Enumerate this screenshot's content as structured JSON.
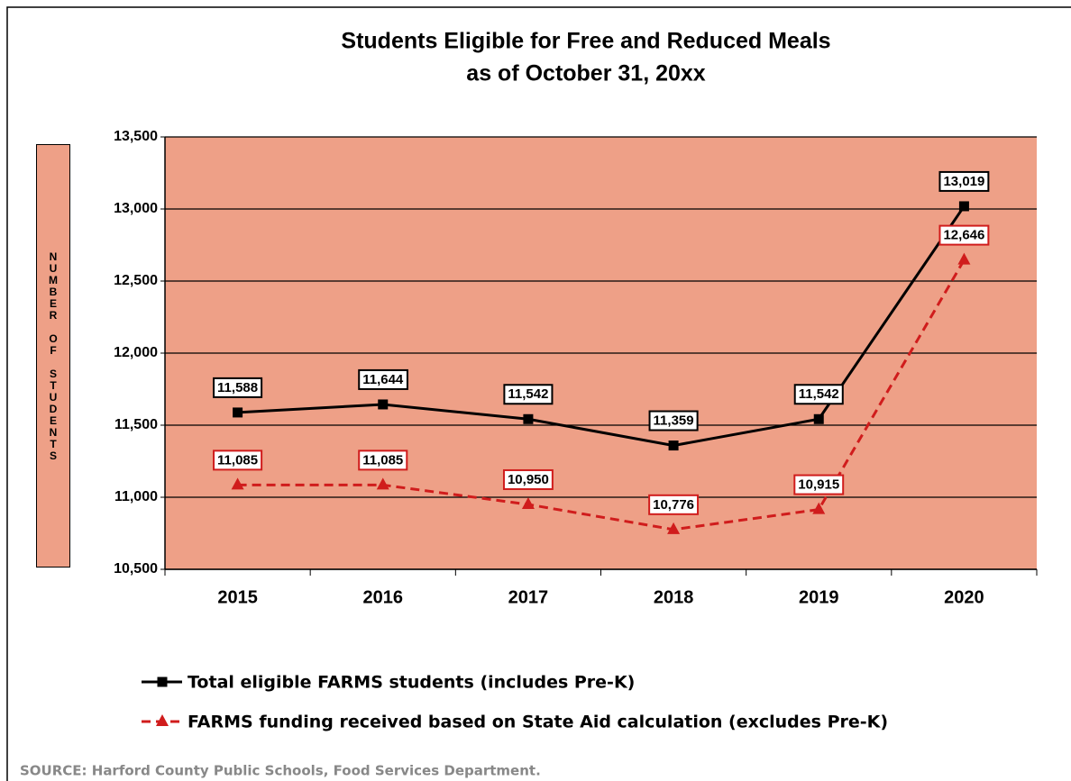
{
  "chart_data": {
    "type": "line",
    "title": "Students Eligible for Free and Reduced Meals",
    "subtitle": "as of October 31, 20xx",
    "ylabel": "NUMBER OF STUDENTS",
    "categories": [
      "2015",
      "2016",
      "2017",
      "2018",
      "2019",
      "2020"
    ],
    "series": [
      {
        "name": "Total eligible FARMS students (includes Pre-K)",
        "color": "#000000",
        "marker": "square",
        "line_style": "solid",
        "values": [
          11588,
          11644,
          11542,
          11359,
          11542,
          13019
        ],
        "value_labels": [
          "11,588",
          "11,644",
          "11,542",
          "11,359",
          "11,542",
          "13,019"
        ]
      },
      {
        "name": "FARMS funding received based on State Aid calculation (excludes Pre-K)",
        "color": "#d01c1c",
        "marker": "triangle",
        "line_style": "dashed",
        "values": [
          11085,
          11085,
          10950,
          10776,
          10915,
          12646
        ],
        "value_labels": [
          "11,085",
          "11,085",
          "10,950",
          "10,776",
          "10,915",
          "12,646"
        ]
      }
    ],
    "ylim": [
      10500,
      13500
    ],
    "yticks": [
      {
        "value": 10500,
        "label": "10,500"
      },
      {
        "value": 11000,
        "label": "11,000"
      },
      {
        "value": 11500,
        "label": "11,500"
      },
      {
        "value": 12000,
        "label": "12,000"
      },
      {
        "value": 12500,
        "label": "12,500"
      },
      {
        "value": 13000,
        "label": "13,000"
      },
      {
        "value": 13500,
        "label": "13,500"
      }
    ],
    "grid": true,
    "plot_background": "#eea087",
    "legend": "bottom",
    "source": "SOURCE:  Harford County Public Schools, Food Services Department."
  }
}
